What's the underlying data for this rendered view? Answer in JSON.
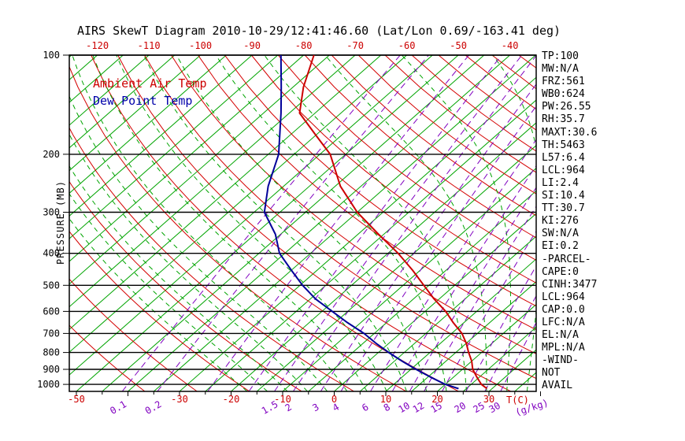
{
  "title": "AIRS SkewT Diagram 2010-10-29/12:41:46.60 (Lat/Lon 0.69/-163.41 deg)",
  "legend": {
    "air_temp": "Ambient Air Temp",
    "dew_point": "Dew Point Temp"
  },
  "axes": {
    "pressure_axis_label": "PRESSURE (MB)",
    "pressure_ticks": [
      100,
      200,
      300,
      400,
      500,
      600,
      700,
      800,
      900,
      1000
    ],
    "top_temperature_ticks_c": [
      -120,
      -110,
      -100,
      -90,
      -80,
      -70,
      -60,
      -50,
      -40
    ],
    "bottom_temperature_ticks_c": [
      -50,
      -30,
      -20,
      -10,
      0,
      10,
      20,
      30
    ],
    "mixing_ratio_labels": [
      0.1,
      0.2,
      1.5,
      2,
      3,
      4,
      6,
      8,
      10,
      12,
      15,
      20,
      25,
      30
    ],
    "temperature_unit_label": "T(C)",
    "mixing_ratio_unit_label": "(g/kg)"
  },
  "grid": {
    "isotherm_step_c": 5,
    "isotherm_range_c": [
      -130,
      40
    ],
    "dry_adiabat_theta_c": {
      "min": -40,
      "max": 190,
      "step": 10
    },
    "moist_adiabat_thetaw_c": {
      "min": -20,
      "max": 40,
      "step": 4
    },
    "mixing_ratio_lines_gkg": [
      0.1,
      0.2,
      0.5,
      1,
      1.5,
      2,
      3,
      4,
      6,
      8,
      10,
      12,
      15,
      20,
      25,
      30
    ]
  },
  "colors": {
    "isotherm": "#00a400",
    "dry_adiabat": "#d40000",
    "moist_adiabat": "#00a400",
    "mixing_ratio": "#8000c0",
    "label_red": "#cc0000",
    "air_temp": "#cc0000",
    "dew_point": "#000099",
    "frame": "#000000"
  },
  "chart_data": {
    "type": "line",
    "title": "AIRS SkewT Diagram 2010-10-29/12:41:46.60 (Lat/Lon 0.69/-163.41 deg)",
    "x_axis": {
      "label": "Temperature (C)",
      "skewed": true,
      "bottom_range_c": [
        -50,
        40
      ]
    },
    "y_axis": {
      "label": "PRESSURE (MB)",
      "scale": "log",
      "range_mb": [
        100,
        1050
      ]
    },
    "legend_position": "top-left-inside",
    "series": [
      {
        "name": "Ambient Air Temp",
        "color": "#cc0000",
        "points_p_t": [
          [
            100,
            -78
          ],
          [
            125,
            -73
          ],
          [
            150,
            -68
          ],
          [
            175,
            -60
          ],
          [
            200,
            -53
          ],
          [
            250,
            -44
          ],
          [
            300,
            -35
          ],
          [
            350,
            -26
          ],
          [
            400,
            -18
          ],
          [
            450,
            -11.5
          ],
          [
            500,
            -6
          ],
          [
            550,
            -1
          ],
          [
            600,
            4
          ],
          [
            650,
            8
          ],
          [
            700,
            12
          ],
          [
            750,
            15
          ],
          [
            800,
            17.5
          ],
          [
            850,
            20
          ],
          [
            900,
            22
          ],
          [
            950,
            24.5
          ],
          [
            1000,
            27
          ],
          [
            1030,
            29
          ]
        ]
      },
      {
        "name": "Dew Point Temp",
        "color": "#000099",
        "points_p_t": [
          [
            100,
            -84.4
          ],
          [
            125,
            -77.3
          ],
          [
            150,
            -71.6
          ],
          [
            175,
            -67
          ],
          [
            200,
            -63
          ],
          [
            250,
            -58
          ],
          [
            300,
            -53
          ],
          [
            350,
            -46
          ],
          [
            400,
            -41
          ],
          [
            450,
            -35
          ],
          [
            500,
            -29.5
          ],
          [
            550,
            -24
          ],
          [
            600,
            -18
          ],
          [
            650,
            -12.5
          ],
          [
            700,
            -7
          ],
          [
            750,
            -2.5
          ],
          [
            800,
            2
          ],
          [
            850,
            6.5
          ],
          [
            900,
            11
          ],
          [
            950,
            15.5
          ],
          [
            1000,
            20
          ],
          [
            1030,
            23.5
          ]
        ]
      }
    ]
  },
  "stats_panel": [
    "TP:100",
    "MW:N/A",
    "FRZ:561",
    "WB0:624",
    "PW:26.55",
    "RH:35.7",
    "MAXT:30.6",
    "TH:5463",
    "L57:6.4",
    "LCL:964",
    "LI:2.4",
    "SI:10.4",
    "TT:30.7",
    "KI:276",
    "SW:N/A",
    "EI:0.2",
    "-PARCEL-",
    "CAPE:0",
    "CINH:3477",
    "LCL:964",
    "CAP:0.0",
    "LFC:N/A",
    "EL:N/A",
    "MPL:N/A",
    "-WIND-",
    "NOT",
    "AVAIL"
  ]
}
